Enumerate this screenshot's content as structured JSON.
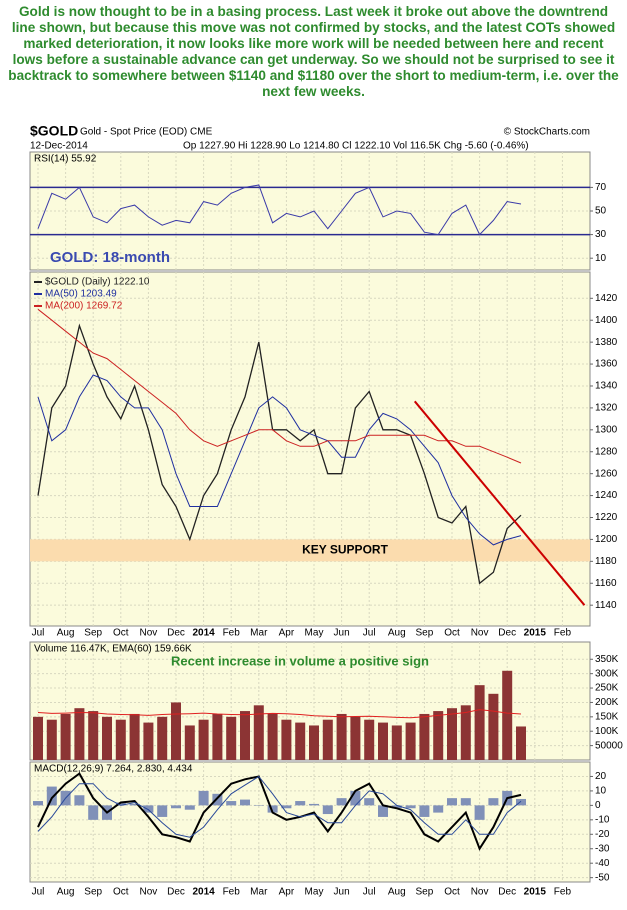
{
  "commentary": "Gold is now thought to be in a basing process. Last week it broke out above the downtrend line shown, but because this move was not confirmed by stocks, and the latest COTs showed marked deterioration, it now looks like more work will be needed between here and recent lows before a sustainable advance can get underway. So we should not be surprised to see it backtrack to somewhere between $1140 and $1180 over the short to medium-term, i.e. over the next few weeks.",
  "header": {
    "symbol": "$GOLD",
    "name": "Gold - Spot Price (EOD) CME",
    "credit": "© StockCharts.com",
    "date": "12-Dec-2014",
    "quote": "Op 1227.90  Hi 1228.90  Lo 1214.80  Cl 1222.10  Vol 116.5K  Chg -5.60 (-0.46%)"
  },
  "chart_data": [
    {
      "type": "line",
      "label": "RSI(14) 55.92",
      "annotation": "GOLD: 18-month",
      "ylim": [
        0,
        100
      ],
      "yticks": [
        70,
        50,
        30,
        10
      ],
      "reference_lines": [
        70,
        30
      ],
      "grid": true,
      "series": [
        {
          "color": "#3a3aa8",
          "values": [
            35,
            65,
            60,
            70,
            45,
            40,
            52,
            55,
            45,
            38,
            42,
            40,
            58,
            55,
            65,
            70,
            72,
            40,
            48,
            45,
            50,
            35,
            50,
            65,
            70,
            45,
            50,
            48,
            32,
            30,
            48,
            55,
            30,
            42,
            58,
            55.92,
            null,
            null,
            null,
            null
          ]
        }
      ]
    },
    {
      "type": "line",
      "categories": [
        "Jul",
        null,
        "Aug",
        null,
        "Sep",
        null,
        "Oct",
        null,
        "Nov",
        null,
        "Dec",
        null,
        "2014",
        null,
        "Feb",
        null,
        "Mar",
        null,
        "Apr",
        null,
        "May",
        null,
        "Jun",
        null,
        "Jul",
        null,
        "Aug",
        null,
        "Sep",
        null,
        "Oct",
        null,
        "Nov",
        null,
        "Dec",
        null,
        "2015",
        null,
        "Feb",
        null
      ],
      "ylim": [
        1121,
        1444
      ],
      "yticks": [
        1420,
        1400,
        1380,
        1360,
        1340,
        1320,
        1300,
        1280,
        1260,
        1240,
        1220,
        1200,
        1180,
        1160,
        1140
      ],
      "grid": true,
      "support": {
        "range": [
          1180,
          1200
        ],
        "label": "KEY SUPPORT",
        "color": "#fbdcae"
      },
      "trendline": {
        "color": "#cc0000",
        "x": [
          27.3,
          39.6
        ],
        "y": [
          1326,
          1140
        ]
      },
      "series": [
        {
          "name": "$GOLD (Daily) 1222.10",
          "color": "#222222",
          "values": [
            1240,
            1320,
            1340,
            1395,
            1360,
            1330,
            1310,
            1340,
            1300,
            1250,
            1230,
            1200,
            1240,
            1260,
            1300,
            1330,
            1380,
            1300,
            1300,
            1290,
            1300,
            1260,
            1260,
            1320,
            1335,
            1300,
            1300,
            1295,
            1260,
            1220,
            1215,
            1230,
            1160,
            1170,
            1210,
            1222.1,
            null,
            null,
            null,
            null
          ]
        },
        {
          "name": "MA(50) 1203.49",
          "color": "#2030a0",
          "values": [
            1330,
            1290,
            1300,
            1330,
            1350,
            1345,
            1330,
            1320,
            1320,
            1300,
            1260,
            1230,
            1230,
            1230,
            1260,
            1290,
            1320,
            1330,
            1320,
            1300,
            1295,
            1290,
            1275,
            1275,
            1300,
            1315,
            1310,
            1300,
            1285,
            1270,
            1240,
            1220,
            1205,
            1195,
            1200,
            1203.49,
            null,
            null,
            null,
            null
          ]
        },
        {
          "name": "MA(200) 1269.72",
          "color": "#cc2222",
          "values": [
            1410,
            1400,
            1390,
            1380,
            1370,
            1365,
            1355,
            1345,
            1335,
            1325,
            1315,
            1300,
            1290,
            1285,
            1290,
            1295,
            1300,
            1300,
            1290,
            1285,
            1285,
            1290,
            1290,
            1290,
            1295,
            1295,
            1295,
            1295,
            1295,
            1290,
            1290,
            1285,
            1285,
            1280,
            1275,
            1269.72,
            null,
            null,
            null,
            null
          ]
        }
      ]
    },
    {
      "type": "bar",
      "label": "Volume 116.47K, EMA(60) 159.66K",
      "annotation": "Recent increase in volume a positive sign",
      "ylim": [
        0,
        410000
      ],
      "grid": true,
      "yticks": [
        {
          "value": 350000,
          "label": "350K"
        },
        {
          "value": 300000,
          "label": "300K"
        },
        {
          "value": 250000,
          "label": "250K"
        },
        {
          "value": 200000,
          "label": "200K"
        },
        {
          "value": 150000,
          "label": "150K"
        },
        {
          "value": 100000,
          "label": "100K"
        },
        50000
      ],
      "series": [
        {
          "type": "bar",
          "color": "#8c3434",
          "values": [
            150000,
            140000,
            160000,
            180000,
            170000,
            150000,
            140000,
            160000,
            130000,
            150000,
            200000,
            120000,
            140000,
            160000,
            150000,
            170000,
            190000,
            160000,
            140000,
            130000,
            120000,
            140000,
            160000,
            150000,
            140000,
            130000,
            120000,
            130000,
            160000,
            170000,
            180000,
            190000,
            260000,
            230000,
            310000,
            116470,
            null,
            null,
            null,
            null
          ]
        },
        {
          "type": "line",
          "color": "#e02020",
          "values": [
            165000,
            162000,
            163000,
            165000,
            164000,
            160000,
            158000,
            157000,
            155000,
            158000,
            160000,
            161000,
            163000,
            160000,
            158000,
            157000,
            160000,
            162000,
            161000,
            158000,
            154000,
            152000,
            150000,
            151000,
            152000,
            150000,
            148000,
            147000,
            150000,
            155000,
            160000,
            165000,
            175000,
            170000,
            163000,
            159660,
            null,
            null,
            null,
            null
          ]
        }
      ]
    },
    {
      "type": "line",
      "label": "MACD(12,26,9) 7.264, 2.830, 4.434",
      "ylim": [
        -53,
        30
      ],
      "yticks": [
        20,
        10,
        0,
        -10,
        -20,
        -30,
        -40,
        -50
      ],
      "grid": true,
      "series": [
        {
          "type": "bar",
          "color": "#8090b8",
          "values": [
            3,
            13,
            10,
            7,
            -10,
            -10,
            2,
            1,
            -5,
            -8,
            -2,
            -3,
            10,
            8,
            3,
            4,
            0,
            -5,
            -2,
            3,
            1,
            -6,
            5,
            10,
            5,
            -8,
            -2,
            -2,
            -8,
            -5,
            5,
            5,
            -10,
            5,
            10,
            4.434,
            null,
            null,
            null,
            null
          ]
        },
        {
          "type": "line",
          "color": "#000000",
          "width": 2,
          "values": [
            -15,
            5,
            15,
            22,
            5,
            -5,
            2,
            3,
            -8,
            -20,
            -22,
            -25,
            -5,
            5,
            15,
            18,
            20,
            -5,
            -10,
            -8,
            -5,
            -18,
            -5,
            10,
            15,
            0,
            -2,
            -5,
            -20,
            -25,
            -15,
            -5,
            -30,
            -15,
            5,
            7.264,
            null,
            null,
            null,
            null
          ]
        },
        {
          "type": "line",
          "color": "#2a4a9a",
          "width": 1,
          "values": [
            -18,
            -8,
            5,
            15,
            15,
            5,
            0,
            2,
            -3,
            -12,
            -20,
            -22,
            -15,
            -3,
            8,
            14,
            20,
            8,
            -5,
            -8,
            -6,
            -12,
            -12,
            0,
            10,
            8,
            0,
            -3,
            -12,
            -20,
            -20,
            -10,
            -20,
            -20,
            -5,
            2.83,
            null,
            null,
            null,
            null
          ]
        }
      ]
    }
  ]
}
